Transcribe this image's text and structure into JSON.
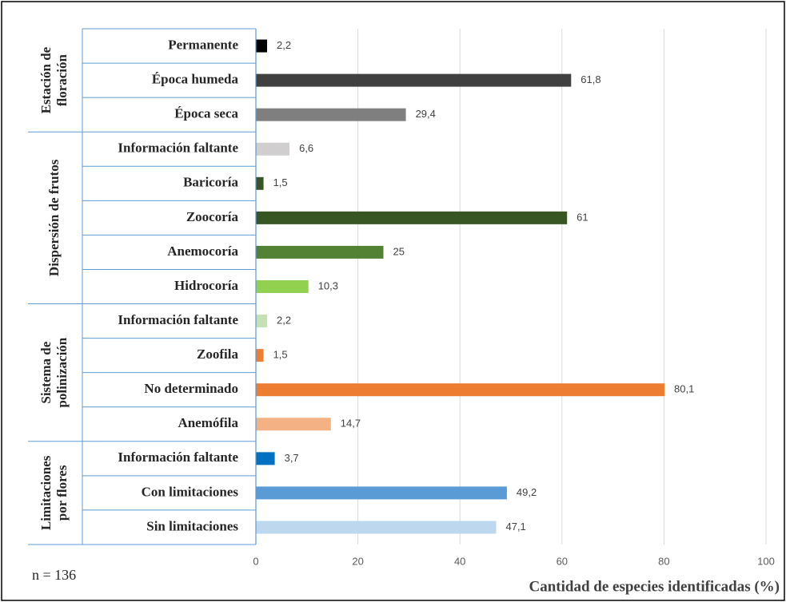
{
  "chart_data": {
    "type": "bar",
    "x_label": "Cantidad de especies identificadas (%)",
    "annotation": "n = 136",
    "xlim": [
      0,
      100
    ],
    "xticks": [
      0,
      20,
      40,
      60,
      80,
      100
    ],
    "grid": true,
    "groups": [
      {
        "label": [
          "Estación de",
          "floración"
        ],
        "categories": [
          "Permanente",
          "Época humeda",
          "Época seca"
        ],
        "values": [
          2.2,
          61.8,
          29.4
        ],
        "value_labels": [
          "2,2",
          "61,8",
          "29,4"
        ],
        "colors": [
          "#000000",
          "#404040",
          "#7f7f7f"
        ]
      },
      {
        "label": [
          "Dispersión de frutos"
        ],
        "categories": [
          "Información faltante",
          "Baricoría",
          "Zoocoría",
          "Anemocoría",
          "Hidrocoría"
        ],
        "values": [
          6.6,
          1.5,
          61,
          25,
          10.3
        ],
        "value_labels": [
          "6,6",
          "1,5",
          "61",
          "25",
          "10,3"
        ],
        "colors": [
          "#d0cece",
          "#375623",
          "#375623",
          "#548235",
          "#92d050"
        ]
      },
      {
        "label": [
          "Sistema de",
          "polinización"
        ],
        "categories": [
          "Información faltante",
          "Zoofila",
          "No determinado",
          "Anemófila"
        ],
        "values": [
          2.2,
          1.5,
          80.1,
          14.7
        ],
        "value_labels": [
          "2,2",
          "1,5",
          "80,1",
          "14,7"
        ],
        "colors": [
          "#c5e0b4",
          "#ed7d31",
          "#ed7d31",
          "#f4b183"
        ]
      },
      {
        "label": [
          "Limitaciones",
          "por flores"
        ],
        "categories": [
          "Información faltante",
          "Con limitaciones",
          "Sin limitaciones"
        ],
        "values": [
          3.7,
          49.2,
          47.1
        ],
        "value_labels": [
          "3,7",
          "49,2",
          "47,1"
        ],
        "colors": [
          "#0070c0",
          "#5b9bd5",
          "#bdd7ee"
        ]
      }
    ]
  }
}
